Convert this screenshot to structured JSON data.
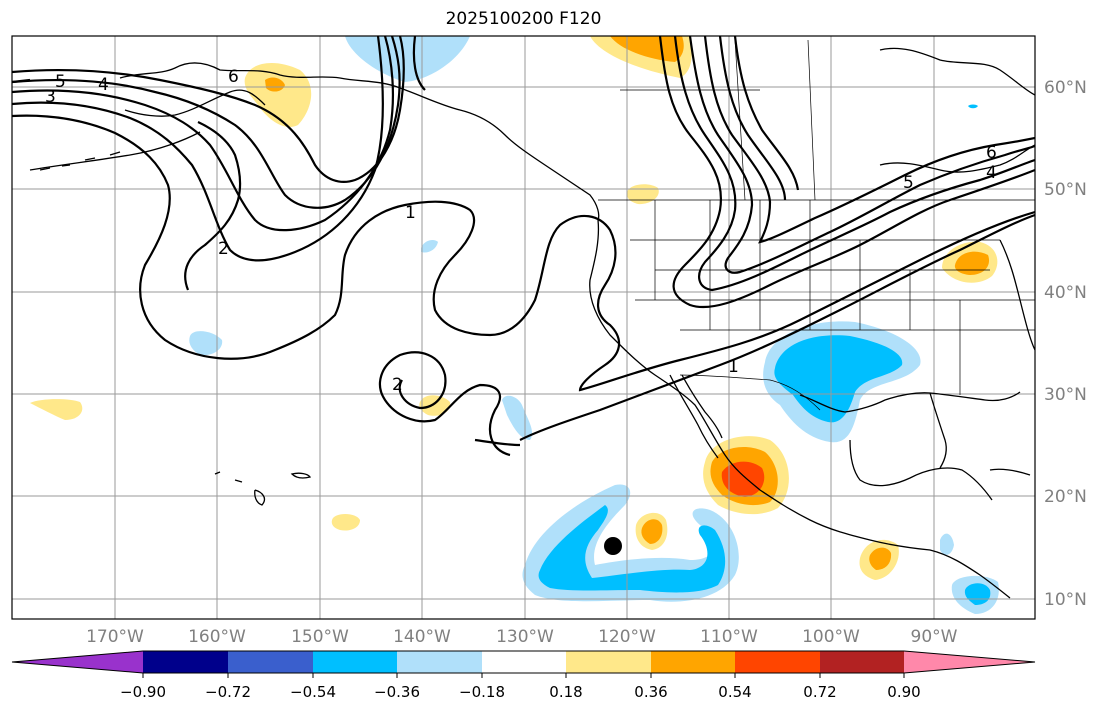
{
  "map": {
    "title": "2025100200 F120",
    "lat_labels": [
      "60°N",
      "50°N",
      "40°N",
      "30°N",
      "20°N",
      "10°N"
    ],
    "lon_labels": [
      "170°W",
      "160°W",
      "150°W",
      "140°W",
      "130°W",
      "120°W",
      "110°W",
      "100°W",
      "90°W"
    ],
    "contour_labels": [
      "5",
      "4",
      "3",
      "6",
      "1",
      "2",
      "2",
      "6",
      "5",
      "4",
      "1"
    ],
    "marker": {
      "name": "storm center",
      "lat": 15,
      "lon": -121
    }
  },
  "colorbar": {
    "tick_labels": [
      "−0.90",
      "−0.72",
      "−0.54",
      "−0.36",
      "−0.18",
      "0.18",
      "0.36",
      "0.54",
      "0.72",
      "0.90"
    ],
    "colors": [
      "#9932cc",
      "#00008b",
      "#3a5fcd",
      "#00bfff",
      "#b0e0fa",
      "#ffffff",
      "#ffe88a",
      "#ffa500",
      "#ff4500",
      "#b22222",
      "#ff88aa"
    ]
  }
}
